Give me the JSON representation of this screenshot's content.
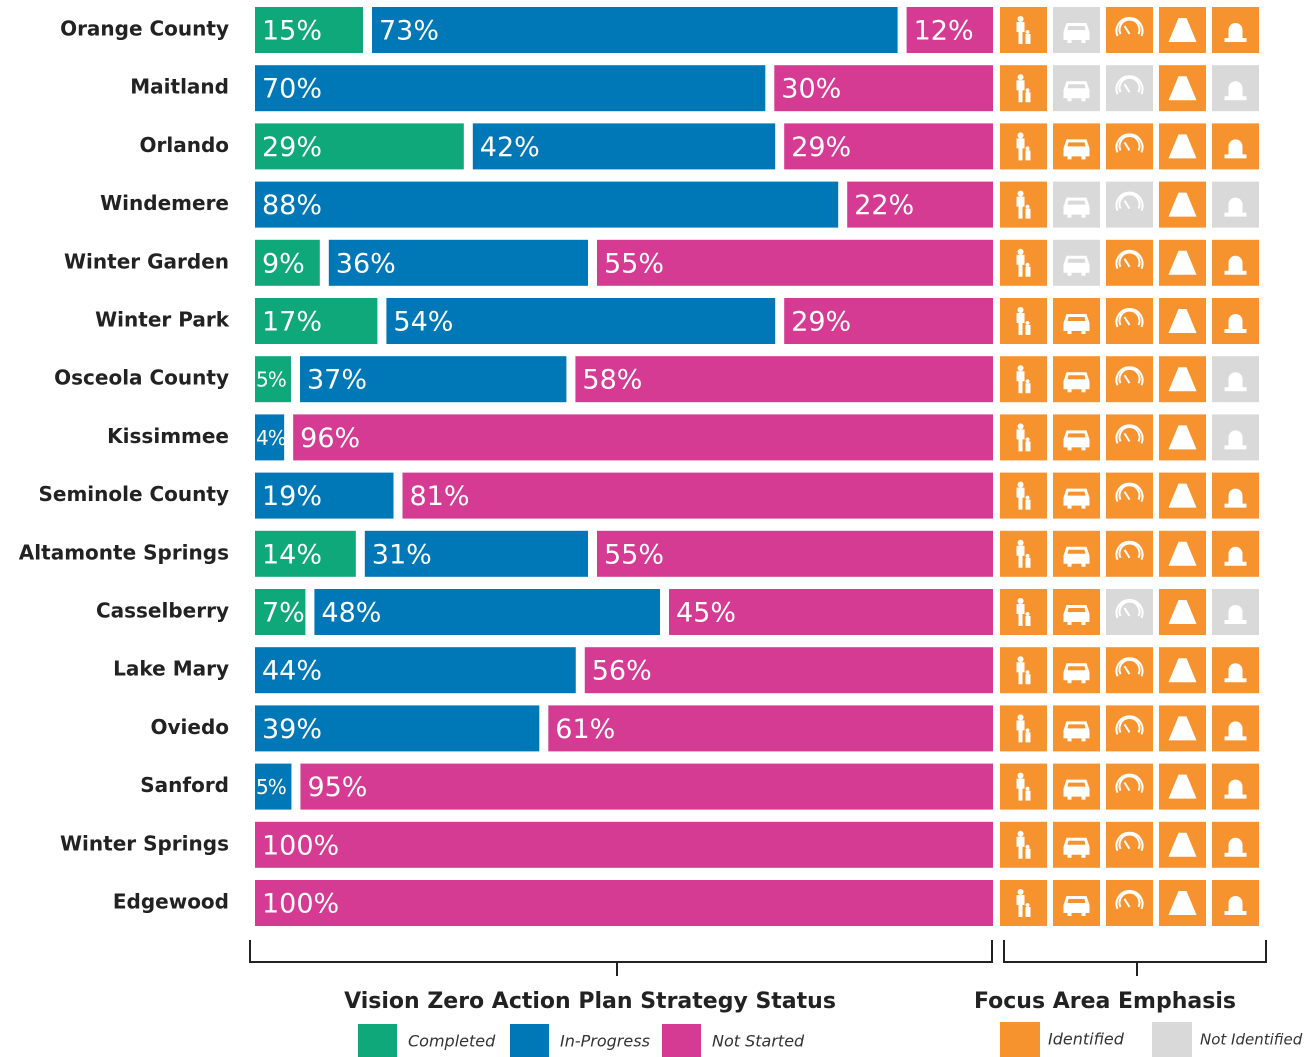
{
  "chart_data": {
    "type": "stacked-bar",
    "categories": [
      "Orange County",
      "Maitland",
      "Orlando",
      "Windemere",
      "Winter Garden",
      "Winter Park",
      "Osceola County",
      "Kissimmee",
      "Seminole County",
      "Altamonte Springs",
      "Casselberry",
      "Lake Mary",
      "Oviedo",
      "Sanford",
      "Winter Springs",
      "Edgewood"
    ],
    "series": [
      {
        "name": "Completed",
        "color": "#0ea87a",
        "values": [
          15,
          null,
          29,
          null,
          9,
          17,
          5,
          null,
          null,
          14,
          7,
          null,
          null,
          null,
          null,
          null
        ],
        "value_labels": [
          "15%",
          null,
          "29%",
          null,
          "9%",
          "17%",
          "5%",
          null,
          null,
          "14%",
          "7%",
          null,
          null,
          null,
          null,
          null
        ]
      },
      {
        "name": "In-Progress",
        "color": "#0077b6",
        "values": [
          73,
          70,
          42,
          88,
          36,
          54,
          37,
          4,
          19,
          31,
          48,
          44,
          39,
          5,
          null,
          null
        ],
        "value_labels": [
          "73%",
          "70%",
          "42%",
          "88%",
          "36%",
          "54%",
          "37%",
          "4%",
          "19%",
          "31%",
          "48%",
          "44%",
          "39%",
          "5%",
          null,
          null
        ]
      },
      {
        "name": "Not Started",
        "color": "#d63b93",
        "values": [
          12,
          30,
          29,
          22,
          55,
          29,
          58,
          96,
          81,
          55,
          45,
          56,
          61,
          95,
          100,
          100
        ],
        "value_labels": [
          "12%",
          "30%",
          "29%",
          "22%",
          "55%",
          "29%",
          "58%",
          "96%",
          "81%",
          "55%",
          "45%",
          "56%",
          "61%",
          "95%",
          "100%",
          "100%"
        ]
      }
    ],
    "xlabel": "Vision Zero Action Plan Strategy Status",
    "focus_area": {
      "title": "Focus Area Emphasis",
      "legend": [
        {
          "name": "Identified",
          "color": "#f7932f"
        },
        {
          "name": "Not Identified",
          "color": "#d9d9d9"
        }
      ],
      "status": [
        [
          true,
          false,
          true,
          true,
          true
        ],
        [
          true,
          false,
          false,
          true,
          false
        ],
        [
          true,
          true,
          true,
          true,
          true
        ],
        [
          true,
          false,
          false,
          true,
          false
        ],
        [
          true,
          false,
          true,
          true,
          true
        ],
        [
          true,
          true,
          true,
          true,
          true
        ],
        [
          true,
          true,
          true,
          true,
          false
        ],
        [
          true,
          true,
          true,
          true,
          false
        ],
        [
          true,
          true,
          true,
          true,
          true
        ],
        [
          true,
          true,
          true,
          true,
          true
        ],
        [
          true,
          true,
          false,
          true,
          false
        ],
        [
          true,
          true,
          true,
          true,
          true
        ],
        [
          true,
          true,
          true,
          true,
          true
        ],
        [
          true,
          true,
          true,
          true,
          true
        ],
        [
          true,
          true,
          true,
          true,
          true
        ],
        [
          true,
          true,
          true,
          true,
          true
        ]
      ]
    }
  }
}
